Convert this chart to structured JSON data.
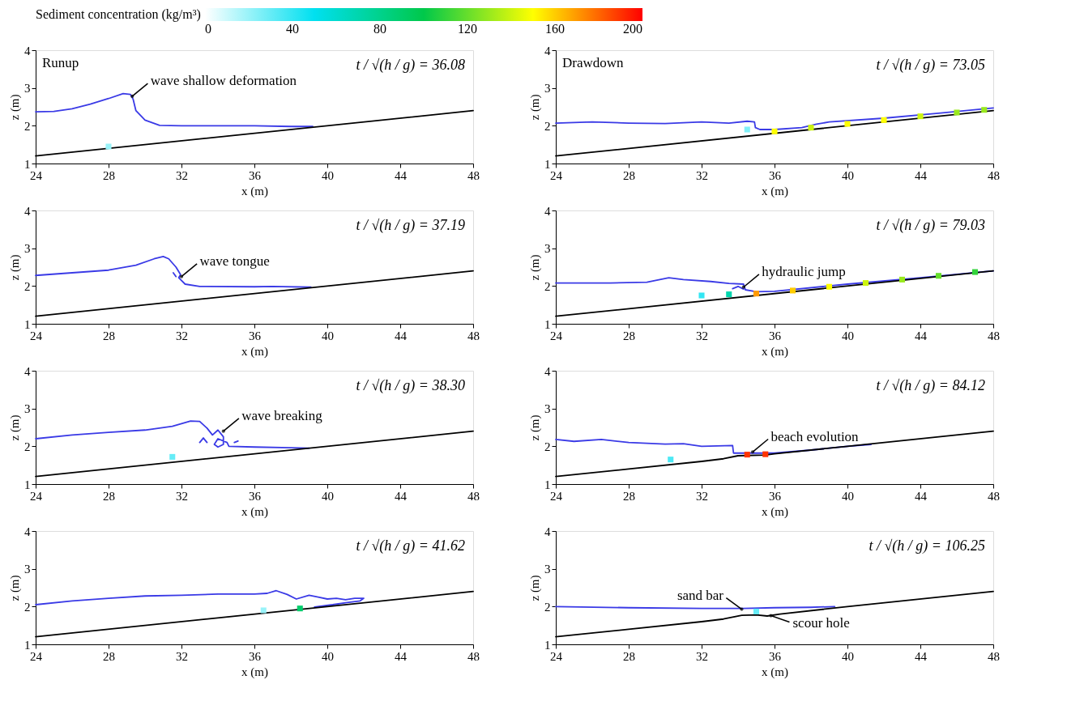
{
  "chart_data": [
    {
      "type": "line",
      "title": "Runup",
      "subtitle": "t / √(h / g) = 36.08",
      "xlabel": "x (m)",
      "ylabel": "z (m)",
      "xlim": [
        24,
        48
      ],
      "xticks": [
        24,
        28,
        32,
        36,
        40,
        44,
        48
      ],
      "ylim": [
        1,
        4
      ],
      "yticks": [
        1,
        2,
        3,
        4
      ],
      "grid": false,
      "clabel": "Sediment concentration (kg/m³)",
      "clim": [
        0,
        200
      ],
      "cticks": [
        0,
        40,
        80,
        120,
        160,
        200
      ],
      "annotations": [
        {
          "text": "wave shallow deformation",
          "x": 29.3,
          "y": 2.78
        }
      ],
      "series": [
        {
          "color": "#3a3ae6",
          "x": [
            24,
            25,
            26,
            27,
            28,
            28.8,
            29.2,
            29.35,
            29.5,
            30,
            30.8,
            32,
            36,
            38,
            39.2
          ],
          "values": [
            2.37,
            2.38,
            2.45,
            2.57,
            2.72,
            2.85,
            2.83,
            2.7,
            2.4,
            2.15,
            2.01,
            2.0,
            2.0,
            1.98,
            1.98
          ]
        },
        {
          "color": "#000000",
          "x": [
            24,
            48
          ],
          "values": [
            1.2,
            2.4
          ]
        },
        {
          "type": "scatter",
          "x": [
            28
          ],
          "values": [
            1.45
          ],
          "cvalues": [
            20
          ]
        }
      ]
    },
    {
      "type": "line",
      "title": "Drawdown",
      "subtitle": "t / √(h / g) = 73.05",
      "xlabel": "x (m)",
      "ylabel": "z (m)",
      "xlim": [
        24,
        48
      ],
      "xticks": [
        24,
        28,
        32,
        36,
        40,
        44,
        48
      ],
      "ylim": [
        1,
        4
      ],
      "yticks": [
        1,
        2,
        3,
        4
      ],
      "grid": false,
      "series": [
        {
          "color": "#3a3ae6",
          "x": [
            24,
            26,
            28,
            30,
            32,
            33.5,
            34.5,
            34.9,
            34.95,
            35.2,
            36,
            37.5,
            38.3,
            39,
            42,
            45,
            48
          ],
          "values": [
            2.07,
            2.1,
            2.07,
            2.06,
            2.1,
            2.07,
            2.12,
            2.1,
            1.95,
            1.9,
            1.9,
            1.95,
            2.04,
            2.1,
            2.2,
            2.33,
            2.47
          ]
        },
        {
          "color": "#000000",
          "x": [
            24,
            48
          ],
          "values": [
            1.2,
            2.4
          ]
        },
        {
          "type": "scatter",
          "x": [
            34.5,
            36,
            38,
            40,
            42,
            44,
            46,
            47.5
          ],
          "values": [
            1.9,
            1.85,
            1.95,
            2.05,
            2.15,
            2.25,
            2.35,
            2.42
          ],
          "colors": [
            "#80f0f8",
            "#ffff00",
            "#ccf40f",
            "#ffff00",
            "#ffff00",
            "#ccf40f",
            "#99e91e",
            "#99e91e"
          ]
        }
      ]
    },
    {
      "type": "line",
      "subtitle": "t / √(h / g) = 37.19",
      "xlabel": "x (m)",
      "ylabel": "z (m)",
      "xlim": [
        24,
        48
      ],
      "xticks": [
        24,
        28,
        32,
        36,
        40,
        44,
        48
      ],
      "ylim": [
        1,
        4
      ],
      "yticks": [
        1,
        2,
        3,
        4
      ],
      "grid": false,
      "annotations": [
        {
          "text": "wave tongue",
          "x": 32.0,
          "y": 2.25
        }
      ],
      "series": [
        {
          "color": "#3a3ae6",
          "x": [
            24,
            26,
            28,
            29.5,
            30.5,
            31,
            31.3,
            31.7,
            31.95,
            31.85,
            32.2,
            33,
            36,
            37,
            39.1
          ],
          "values": [
            2.28,
            2.35,
            2.42,
            2.55,
            2.72,
            2.78,
            2.72,
            2.5,
            2.3,
            2.22,
            2.05,
            1.99,
            1.98,
            1.99,
            1.97
          ]
        },
        {
          "color": "#3a3ae6",
          "x": [
            31.55,
            31.7
          ],
          "values": [
            2.35,
            2.25
          ]
        },
        {
          "color": "#000000",
          "x": [
            24,
            48
          ],
          "values": [
            1.2,
            2.4
          ]
        }
      ]
    },
    {
      "type": "line",
      "subtitle": "t / √(h / g) = 79.03",
      "xlabel": "x (m)",
      "ylabel": "z (m)",
      "xlim": [
        24,
        48
      ],
      "xticks": [
        24,
        28,
        32,
        36,
        40,
        44,
        48
      ],
      "ylim": [
        1,
        4
      ],
      "yticks": [
        1,
        2,
        3,
        4
      ],
      "grid": false,
      "annotations": [
        {
          "text": "hydraulic jump",
          "x": 34.3,
          "y": 1.97
        }
      ],
      "series": [
        {
          "color": "#3a3ae6",
          "x": [
            24,
            27,
            29,
            30.2,
            31,
            32.5,
            33.5,
            34.3,
            34.4,
            35,
            36,
            40,
            44,
            48
          ],
          "values": [
            2.08,
            2.08,
            2.1,
            2.22,
            2.17,
            2.12,
            2.07,
            2.05,
            1.9,
            1.85,
            1.86,
            2.05,
            2.22,
            2.4
          ]
        },
        {
          "color": "#3a3ae6",
          "x": [
            33.7,
            34.0,
            34.3
          ],
          "values": [
            1.93,
            1.99,
            1.92
          ]
        },
        {
          "color": "#000000",
          "x": [
            24,
            48
          ],
          "values": [
            1.2,
            2.4
          ]
        },
        {
          "type": "scatter",
          "x": [
            32,
            33.5,
            35,
            37,
            39,
            41,
            43,
            45,
            47
          ],
          "values": [
            1.75,
            1.78,
            1.8,
            1.88,
            1.98,
            2.08,
            2.17,
            2.27,
            2.37
          ],
          "colors": [
            "#33e6f3",
            "#00d6ae",
            "#ff9900",
            "#ffcc00",
            "#ffff00",
            "#ccf40f",
            "#99e91e",
            "#66de2c",
            "#33d33b"
          ]
        }
      ]
    },
    {
      "type": "line",
      "subtitle": "t / √(h / g) = 38.30",
      "xlabel": "x (m)",
      "ylabel": "z (m)",
      "xlim": [
        24,
        48
      ],
      "xticks": [
        24,
        28,
        32,
        36,
        40,
        44,
        48
      ],
      "ylim": [
        1,
        4
      ],
      "yticks": [
        1,
        2,
        3,
        4
      ],
      "grid": false,
      "annotations": [
        {
          "text": "wave breaking",
          "x": 34.3,
          "y": 2.4
        }
      ],
      "series": [
        {
          "color": "#3a3ae6",
          "x": [
            24,
            26,
            28,
            30,
            31.5,
            32.5,
            33.0,
            33.4,
            33.7,
            34.0,
            34.3,
            34.3,
            34.0,
            33.8,
            34.0,
            34.5,
            34.6,
            36,
            38,
            39
          ],
          "values": [
            2.2,
            2.3,
            2.37,
            2.43,
            2.53,
            2.67,
            2.66,
            2.48,
            2.3,
            2.43,
            2.25,
            2.05,
            1.98,
            2.05,
            2.2,
            2.1,
            2.0,
            1.98,
            1.96,
            1.95
          ]
        },
        {
          "color": "#3a3ae6",
          "x": [
            33.0,
            33.2,
            33.4
          ],
          "values": [
            2.1,
            2.22,
            2.1
          ]
        },
        {
          "color": "#3a3ae6",
          "x": [
            34.9,
            35.1
          ],
          "values": [
            2.1,
            2.14
          ]
        },
        {
          "color": "#000000",
          "x": [
            24,
            48
          ],
          "values": [
            1.2,
            2.4
          ]
        },
        {
          "type": "scatter",
          "x": [
            31.5
          ],
          "values": [
            1.72
          ],
          "color": "#66ecf7"
        }
      ]
    },
    {
      "type": "line",
      "subtitle": "t / √(h / g) = 84.12",
      "xlabel": "x (m)",
      "ylabel": "z (m)",
      "xlim": [
        24,
        48
      ],
      "xticks": [
        24,
        28,
        32,
        36,
        40,
        44,
        48
      ],
      "ylim": [
        1,
        4
      ],
      "yticks": [
        1,
        2,
        3,
        4
      ],
      "grid": false,
      "annotations": [
        {
          "text": "beach evolution",
          "x": 34.8,
          "y": 1.85
        }
      ],
      "series": [
        {
          "color": "#3a3ae6",
          "x": [
            24,
            25,
            26.5,
            28,
            30,
            31,
            32,
            33.7,
            33.75,
            34.5,
            36,
            38,
            40,
            41.3
          ],
          "values": [
            2.18,
            2.13,
            2.18,
            2.1,
            2.06,
            2.07,
            2.0,
            2.02,
            1.82,
            1.82,
            1.82,
            1.9,
            2.0,
            2.05
          ]
        },
        {
          "color": "#000000",
          "x": [
            24,
            28,
            32,
            33.2,
            34,
            35.5,
            36,
            40,
            48
          ],
          "values": [
            1.2,
            1.4,
            1.6,
            1.67,
            1.75,
            1.77,
            1.8,
            2.0,
            2.4
          ]
        },
        {
          "type": "scatter",
          "x": [
            30.3,
            34.5,
            35.5
          ],
          "values": [
            1.65,
            1.78,
            1.79
          ],
          "colors": [
            "#4de9f5",
            "#ff3300",
            "#ff3300"
          ]
        }
      ]
    },
    {
      "type": "line",
      "subtitle": "t / √(h / g) = 41.62",
      "xlabel": "x (m)",
      "ylabel": "z (m)",
      "xlim": [
        24,
        48
      ],
      "xticks": [
        24,
        28,
        32,
        36,
        40,
        44,
        48
      ],
      "ylim": [
        1,
        4
      ],
      "yticks": [
        1,
        2,
        3,
        4
      ],
      "grid": false,
      "series": [
        {
          "color": "#3a3ae6",
          "x": [
            24,
            26,
            28,
            30,
            32,
            34,
            36,
            36.7,
            37.2,
            37.8,
            38.3,
            39,
            39.5,
            40,
            40.5,
            41,
            41.5,
            42,
            41.8,
            41,
            40.3,
            39.3
          ],
          "values": [
            2.05,
            2.15,
            2.22,
            2.28,
            2.3,
            2.33,
            2.33,
            2.35,
            2.42,
            2.32,
            2.2,
            2.3,
            2.25,
            2.2,
            2.22,
            2.18,
            2.22,
            2.22,
            2.15,
            2.1,
            2.05,
            1.99
          ]
        },
        {
          "color": "#000000",
          "x": [
            24,
            48
          ],
          "values": [
            1.2,
            2.4
          ]
        },
        {
          "type": "scatter",
          "x": [
            36.5,
            38.5
          ],
          "values": [
            1.9,
            1.95
          ],
          "colors": [
            "#99f3f9",
            "#00cd6b"
          ]
        }
      ]
    },
    {
      "type": "line",
      "subtitle": "t / √(h / g) = 106.25",
      "xlabel": "x (m)",
      "ylabel": "z (m)",
      "xlim": [
        24,
        48
      ],
      "xticks": [
        24,
        28,
        32,
        36,
        40,
        44,
        48
      ],
      "ylim": [
        1,
        4
      ],
      "yticks": [
        1,
        2,
        3,
        4
      ],
      "grid": false,
      "annotations": [
        {
          "text": "sand bar",
          "x": 34.2,
          "y": 1.93
        },
        {
          "text": "scour hole",
          "x": 35.8,
          "y": 1.76
        }
      ],
      "series": [
        {
          "color": "#3a3ae6",
          "x": [
            24,
            28,
            32,
            34.3,
            36,
            38,
            39.3
          ],
          "values": [
            2.0,
            1.97,
            1.95,
            1.95,
            1.97,
            1.98,
            2.0
          ]
        },
        {
          "color": "#000000",
          "x": [
            24,
            28,
            32,
            33.2,
            34.2,
            35,
            35.6,
            36.3,
            40,
            48
          ],
          "values": [
            1.2,
            1.4,
            1.6,
            1.67,
            1.77,
            1.78,
            1.75,
            1.8,
            2.0,
            2.4
          ]
        },
        {
          "type": "scatter",
          "x": [
            35
          ],
          "values": [
            1.87
          ],
          "color": "#66ecf7"
        }
      ]
    }
  ]
}
